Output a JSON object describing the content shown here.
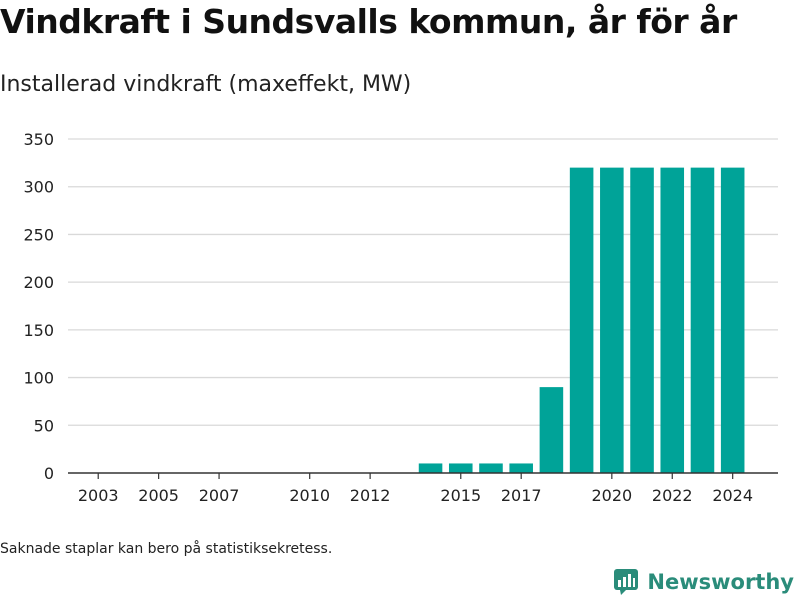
{
  "title": "Vindkraft i Sundsvalls kommun, år för år",
  "subtitle": "Installerad vindkraft (maxeffekt, MW)",
  "footnote": "Saknade staplar kan bero på statistiksekretess.",
  "brand": {
    "name": "Newsworthy",
    "icon": "newsworthy-logo-icon",
    "color": "#2a8c7a"
  },
  "colors": {
    "bar": "#00a398",
    "grid": "#d9d9d9",
    "axis": "#333333"
  },
  "chart_data": {
    "type": "bar",
    "x": [
      2014,
      2015,
      2016,
      2017,
      2018,
      2019,
      2020,
      2021,
      2022,
      2023,
      2024
    ],
    "values": [
      10,
      10,
      10,
      10,
      90,
      320,
      320,
      320,
      320,
      320,
      320
    ],
    "xlim": [
      2002,
      2025.5
    ],
    "ylim": [
      0,
      350
    ],
    "xticks": [
      "2003",
      "2005",
      "2007",
      "2010",
      "2012",
      "2015",
      "2017",
      "2020",
      "2022",
      "2024"
    ],
    "yticks": [
      "0",
      "50",
      "100",
      "150",
      "200",
      "250",
      "300",
      "350"
    ],
    "xlabel": "",
    "ylabel": "",
    "grid": true,
    "legend": "none"
  }
}
